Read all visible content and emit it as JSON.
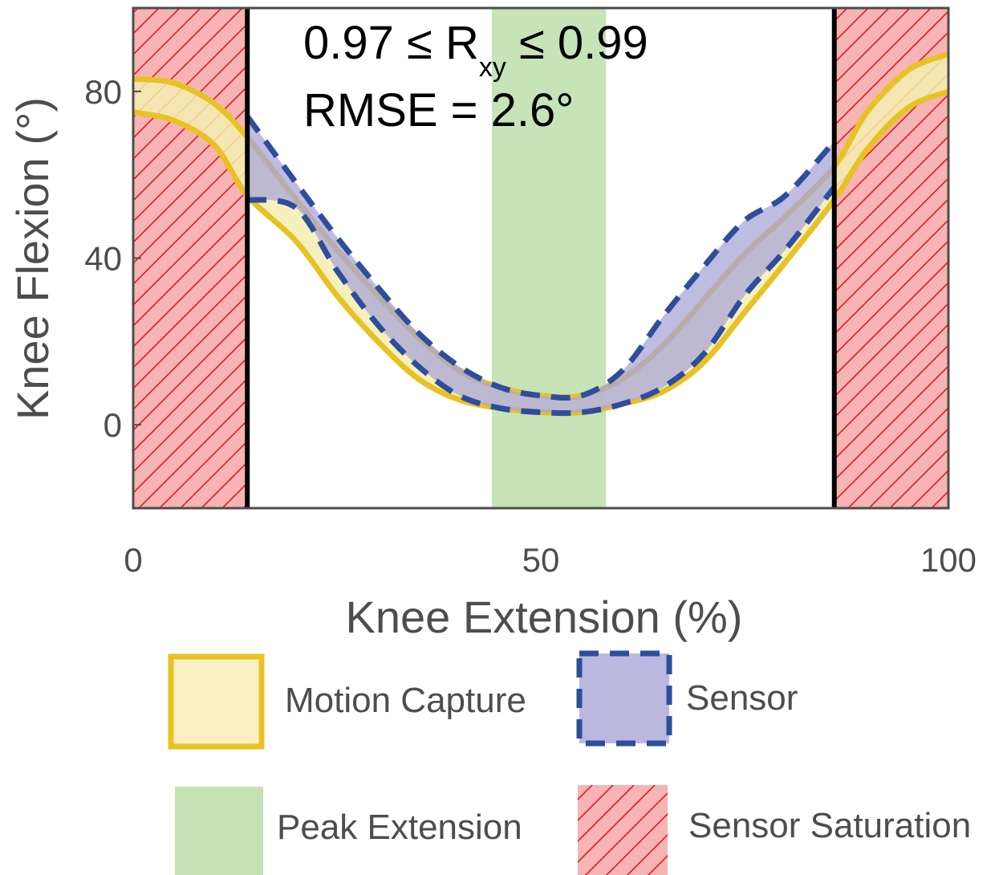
{
  "chart_data": {
    "type": "area",
    "xlabel": "Knee Extension (%)",
    "ylabel": "Knee Flexion (°)",
    "xlim": [
      0,
      100
    ],
    "ylim": [
      -20,
      100
    ],
    "xticks": [
      0,
      50,
      100
    ],
    "yticks": [
      0,
      40,
      80
    ],
    "grid": false,
    "annotation": {
      "line1_prefix": "0.97 ≤ R",
      "line1_sub": "xy",
      "line1_suffix": " ≤ 0.99",
      "line2": "RMSE = 2.6°"
    },
    "regions": {
      "saturation": [
        [
          0,
          14
        ],
        [
          86,
          100
        ]
      ],
      "peak_extension": [
        44,
        58
      ],
      "boundaries": [
        14,
        86
      ]
    },
    "x": [
      0,
      5,
      10,
      14,
      20,
      25,
      30,
      35,
      40,
      45,
      50,
      55,
      60,
      65,
      70,
      75,
      80,
      86,
      90,
      95,
      100
    ],
    "series": [
      {
        "name": "Motion Capture",
        "upper": [
          83,
          82,
          77,
          69,
          54,
          42,
          31,
          21,
          13,
          9,
          7,
          7,
          11,
          19,
          30,
          41,
          50,
          62,
          75,
          85,
          89
        ],
        "lower": [
          75,
          73,
          67,
          55,
          44,
          31,
          20,
          11,
          6,
          4,
          3,
          3,
          5,
          8,
          15,
          27,
          39,
          54,
          66,
          76,
          80
        ],
        "color": "#e8c225",
        "fill": "#f5efb0"
      },
      {
        "name": "Sensor",
        "upper": [
          null,
          null,
          null,
          74,
          58,
          45,
          33,
          22,
          14,
          9,
          7,
          7,
          13,
          26,
          38,
          49,
          55,
          68,
          null,
          null,
          null
        ],
        "lower": [
          null,
          null,
          null,
          54,
          52,
          37,
          24,
          14,
          7,
          4,
          3,
          3,
          5,
          9,
          17,
          31,
          42,
          57,
          null,
          null,
          null
        ],
        "color": "#2e4d9c",
        "fill": "#a9a5d8"
      }
    ],
    "legend": {
      "placement": "bottom",
      "items": [
        "Motion Capture",
        "Sensor",
        "Peak Extension",
        "Sensor Saturation"
      ]
    },
    "colors": {
      "peak_extension": "#c4e2b4",
      "saturation_fill": "#f6b4b4",
      "saturation_hatch": "#e41a1c",
      "boundary": "#000000",
      "axes": "#4d4d4d"
    }
  }
}
